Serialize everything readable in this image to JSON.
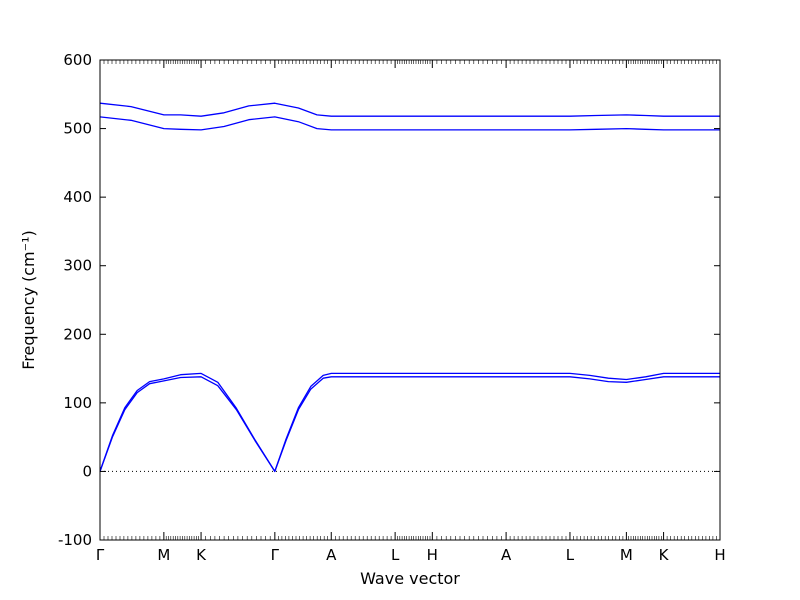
{
  "chart_data": {
    "type": "line",
    "title": "",
    "xlabel": "Wave vector",
    "ylabel": "Frequency (cm⁻¹)",
    "ylim": [
      -100,
      600
    ],
    "yticks": [
      -100,
      0,
      100,
      200,
      300,
      400,
      500,
      600
    ],
    "xlim": [
      0,
      1.0
    ],
    "grid": false,
    "legend": "none",
    "line_color": "#0000ff",
    "zero_line": {
      "y": 0,
      "style": "dotted"
    },
    "x_ticks": [
      {
        "label": "Γ",
        "x": 0.0
      },
      {
        "label": "M",
        "x": 0.103
      },
      {
        "label": "K",
        "x": 0.163
      },
      {
        "label": "Γ",
        "x": 0.282
      },
      {
        "label": "A",
        "x": 0.373
      },
      {
        "label": "L",
        "x": 0.476
      },
      {
        "label": "H",
        "x": 0.536
      },
      {
        "label": "A",
        "x": 0.655
      },
      {
        "label": "L",
        "x": 0.758
      },
      {
        "label": "M",
        "x": 0.849
      },
      {
        "label": "K",
        "x": 0.909
      },
      {
        "label": "H",
        "x": 1.0
      }
    ],
    "series": [
      {
        "x": [
          0,
          0.02,
          0.04,
          0.06,
          0.08,
          0.103,
          0.13,
          0.163,
          0.19,
          0.22,
          0.25,
          0.282,
          0.3,
          0.32,
          0.34,
          0.36,
          0.373,
          0.476,
          0.536,
          0.655,
          0.758,
          0.79,
          0.82,
          0.849,
          0.88,
          0.909,
          1.0
        ],
        "values": [
          0,
          50,
          90,
          115,
          128,
          132,
          137,
          138,
          125,
          90,
          45,
          0,
          45,
          90,
          120,
          136,
          138,
          138,
          138,
          138,
          138,
          135,
          131,
          130,
          134,
          138,
          138
        ]
      },
      {
        "x": [
          0,
          0.02,
          0.04,
          0.06,
          0.08,
          0.103,
          0.13,
          0.163,
          0.19,
          0.22,
          0.25,
          0.282,
          0.3,
          0.32,
          0.34,
          0.36,
          0.373,
          0.476,
          0.536,
          0.655,
          0.758,
          0.79,
          0.82,
          0.849,
          0.88,
          0.909,
          1.0
        ],
        "values": [
          0,
          52,
          93,
          118,
          131,
          135,
          141,
          143,
          130,
          92,
          46,
          0,
          47,
          93,
          124,
          140,
          143,
          143,
          143,
          143,
          143,
          140,
          136,
          134,
          138,
          143,
          143
        ]
      },
      {
        "x": [
          0,
          0.05,
          0.103,
          0.13,
          0.163,
          0.2,
          0.24,
          0.282,
          0.32,
          0.35,
          0.373,
          0.476,
          0.536,
          0.655,
          0.758,
          0.8,
          0.849,
          0.88,
          0.909,
          1.0
        ],
        "values": [
          517,
          512,
          500,
          499,
          498,
          503,
          513,
          517,
          510,
          500,
          498,
          498,
          498,
          498,
          498,
          499,
          500,
          499,
          498,
          498
        ]
      },
      {
        "x": [
          0,
          0.05,
          0.103,
          0.13,
          0.163,
          0.2,
          0.24,
          0.282,
          0.32,
          0.35,
          0.373,
          0.476,
          0.536,
          0.655,
          0.758,
          0.8,
          0.849,
          0.88,
          0.909,
          1.0
        ],
        "values": [
          537,
          532,
          520,
          520,
          518,
          523,
          533,
          537,
          530,
          520,
          518,
          518,
          518,
          518,
          518,
          519,
          520,
          519,
          518,
          518
        ]
      }
    ]
  }
}
